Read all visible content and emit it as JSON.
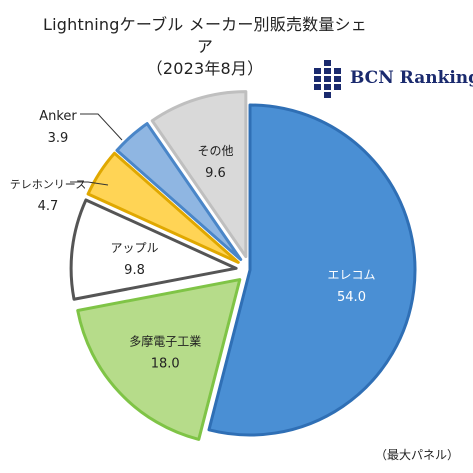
{
  "chart_data": {
    "type": "pie",
    "title": "Lightningケーブル メーカー別販売数量シェア",
    "subtitle": "（2023年8月）",
    "slices": [
      {
        "label": "エレコム",
        "value": 54.0,
        "color": "#4a8fd4",
        "edge": "#2f6fb5",
        "text_color": "#ffffff",
        "exploded": false
      },
      {
        "label": "多摩電子工業",
        "value": 18.0,
        "color": "#b6dc8a",
        "edge": "#7fc446",
        "text_color": "#222222",
        "exploded": true
      },
      {
        "label": "アップル",
        "value": 9.8,
        "color": "#ffffff",
        "edge": "#555555",
        "text_color": "#222222",
        "exploded": true
      },
      {
        "label": "テレホンリース",
        "value": 4.7,
        "color": "#ffd455",
        "edge": "#e0a800",
        "text_color": "#222222",
        "exploded": true
      },
      {
        "label": "Anker",
        "value": 3.9,
        "color": "#8fb6e2",
        "edge": "#4a86c8",
        "text_color": "#222222",
        "exploded": true
      },
      {
        "label": "その他",
        "value": 9.6,
        "color": "#d9d9d9",
        "edge": "#bfbfbf",
        "text_color": "#222222",
        "exploded": true
      }
    ],
    "value_format": "one-decimal"
  },
  "brand": {
    "logo_text": "BCN Ranking",
    "logo_color": "#1a2a6e"
  },
  "footnote": "（最大パネル）"
}
